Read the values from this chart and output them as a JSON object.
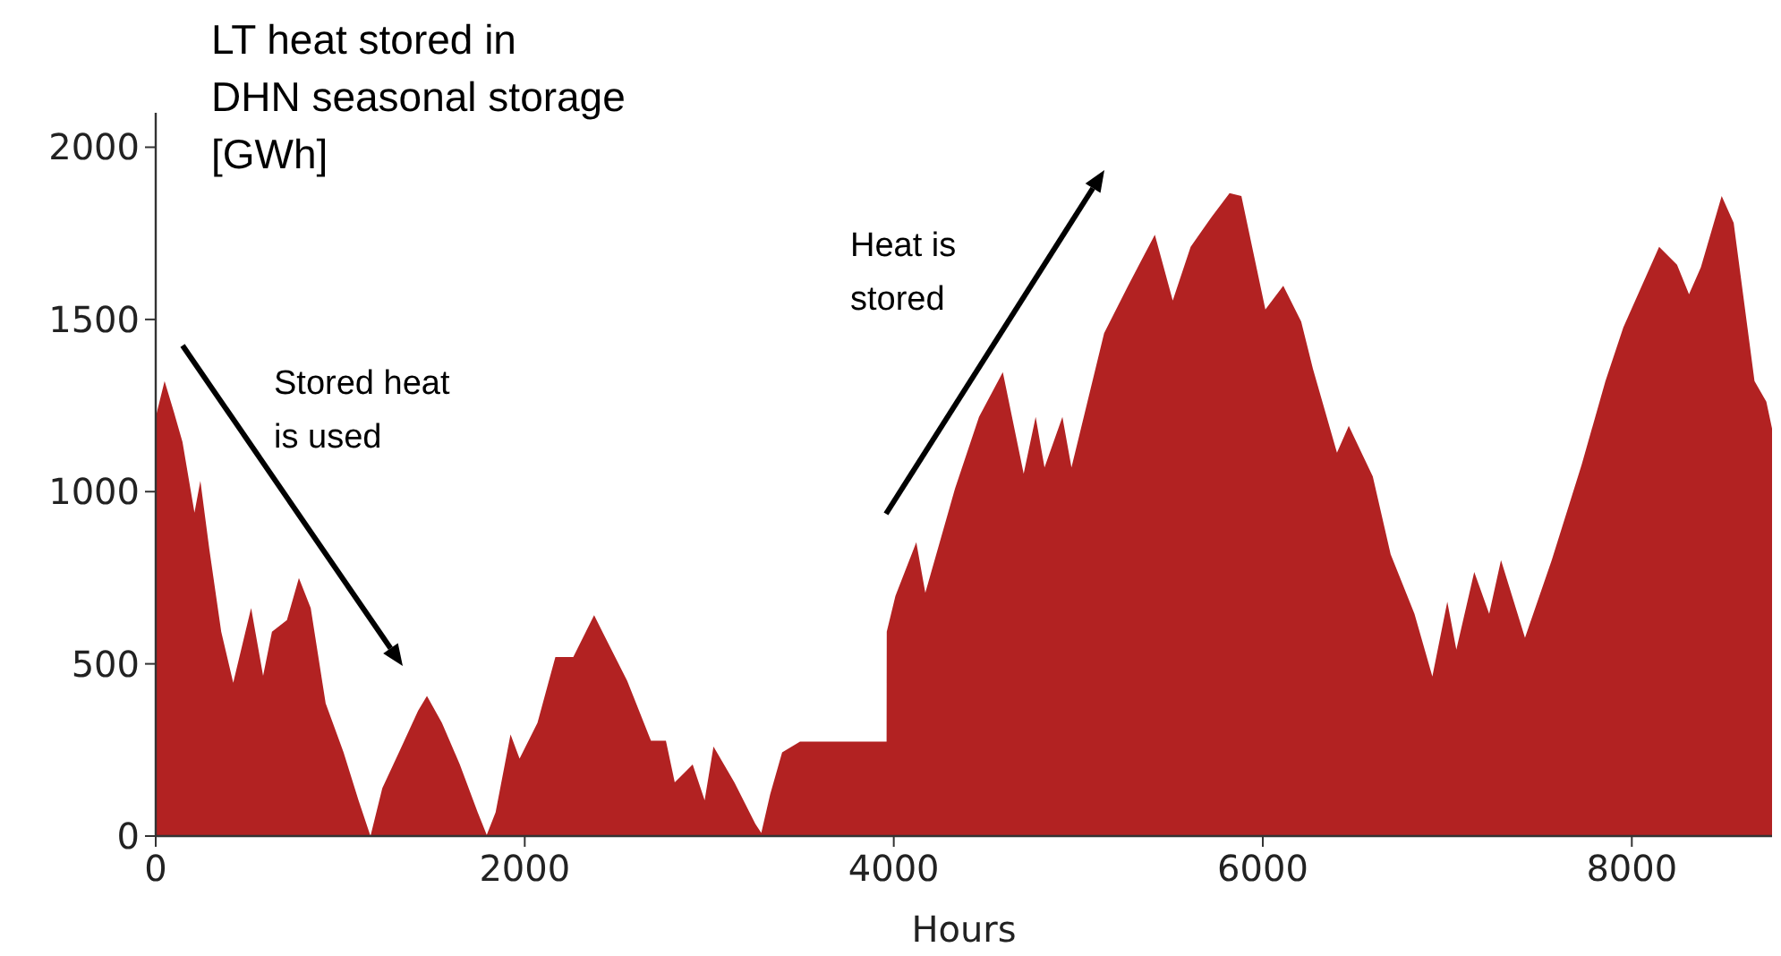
{
  "chart_data": {
    "type": "area",
    "title": "LT heat stored in DHN seasonal storage [GWh]",
    "xlabel": "Hours",
    "annotations": [
      "Stored heat is used",
      "Heat is stored"
    ],
    "x": [
      0,
      48,
      97,
      145,
      210,
      242,
      290,
      355,
      420,
      517,
      582,
      630,
      711,
      776,
      840,
      921,
      1018,
      1099,
      1164,
      1228,
      1325,
      1422,
      1470,
      1551,
      1648,
      1745,
      1794,
      1842,
      1923,
      1972,
      2069,
      2166,
      2263,
      2376,
      2425,
      2555,
      2684,
      2765,
      2813,
      2910,
      2975,
      3023,
      3136,
      3250,
      3282,
      3330,
      3395,
      3492,
      3945,
      3961,
      3962,
      4009,
      4122,
      4171,
      4332,
      4462,
      4591,
      4704,
      4769,
      4817,
      4914,
      4963,
      5140,
      5270,
      5415,
      5512,
      5609,
      5723,
      5820,
      5884,
      6014,
      6111,
      6208,
      6272,
      6402,
      6466,
      6596,
      6693,
      6822,
      6919,
      7000,
      7049,
      7146,
      7227,
      7291,
      7421,
      7566,
      7728,
      7857,
      7954,
      8148,
      8245,
      8310,
      8374,
      8487,
      8552,
      8665,
      8729,
      8760
    ],
    "series": [
      {
        "color": "#b22222",
        "values": [
          1217,
          1321,
          1234,
          1144,
          939,
          1031,
          835,
          593,
          445,
          662,
          465,
          593,
          627,
          749,
          662,
          385,
          243,
          104,
          0,
          139,
          251,
          364,
          407,
          329,
          208,
          69,
          3,
          69,
          295,
          225,
          329,
          520,
          520,
          641,
          589,
          451,
          277,
          277,
          156,
          208,
          104,
          260,
          156,
          35,
          9,
          121,
          243,
          274,
          274,
          274,
          593,
          697,
          853,
          706,
          1009,
          1217,
          1347,
          1052,
          1217,
          1070,
          1217,
          1070,
          1460,
          1598,
          1746,
          1555,
          1711,
          1798,
          1867,
          1858,
          1529,
          1598,
          1494,
          1356,
          1113,
          1191,
          1044,
          818,
          645,
          463,
          680,
          541,
          767,
          645,
          801,
          576,
          801,
          1078,
          1321,
          1477,
          1711,
          1659,
          1573,
          1651,
          1858,
          1780,
          1321,
          1261,
          1183
        ]
      }
    ],
    "xlim": [
      0,
      8760
    ],
    "xticks": [
      0,
      2000,
      4000,
      6000,
      8000
    ],
    "ylim": [
      0,
      2100
    ],
    "yticks": [
      0,
      500,
      1000,
      1500,
      2000
    ],
    "grid": false
  }
}
